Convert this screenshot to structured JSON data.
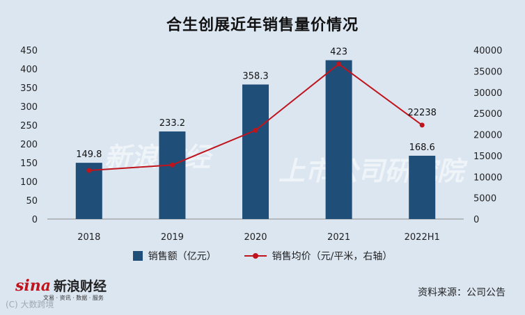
{
  "title": "合生创展近年销售量价情况",
  "chart_data": {
    "type": "bar",
    "categories": [
      "2018",
      "2019",
      "2020",
      "2021",
      "2022H1"
    ],
    "series": [
      {
        "name": "销售额（亿元）",
        "type": "bar",
        "axis": "left",
        "color": "#1f4e79",
        "values": [
          149.8,
          233.2,
          358.3,
          423,
          168.6
        ],
        "labels": [
          "149.8",
          "233.2",
          "358.3",
          "423",
          "168.6"
        ]
      },
      {
        "name": "销售均价（元/平米，右轴）",
        "type": "line",
        "axis": "right",
        "color": "#c0141d",
        "values": [
          11500,
          12800,
          21000,
          36700,
          22238
        ],
        "labels": [
          "",
          "",
          "",
          "",
          "22238"
        ]
      }
    ],
    "yleft": {
      "min": 0,
      "max": 450,
      "ticks": [
        0,
        50,
        100,
        150,
        200,
        250,
        300,
        350,
        400,
        450
      ]
    },
    "yright": {
      "min": 0,
      "max": 40000,
      "ticks": [
        0,
        5000,
        10000,
        15000,
        20000,
        25000,
        30000,
        35000,
        40000
      ]
    },
    "grid": false,
    "legend_position": "bottom"
  },
  "logo": {
    "brand": "sina",
    "name": "新浪财经",
    "sub": "文易 · 资讯 · 数据 · 服务",
    "corner": "(C) 大数跨境"
  },
  "watermark": {
    "left": "新浪财经",
    "right": "上市公司研究院"
  },
  "source": "资料来源：公司公告"
}
